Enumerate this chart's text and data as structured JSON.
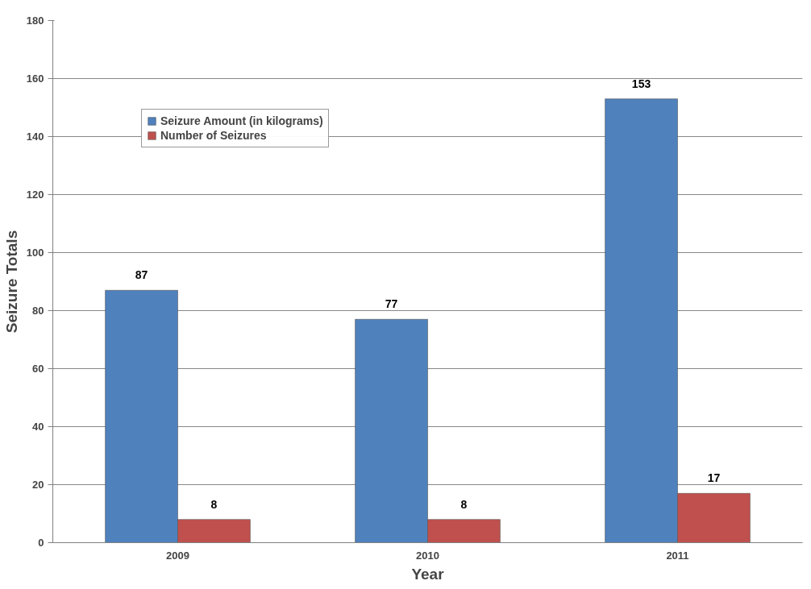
{
  "chart_data": {
    "type": "bar",
    "xlabel": "Year",
    "ylabel": "Seizure Totals",
    "categories": [
      "2009",
      "2010",
      "2011"
    ],
    "series": [
      {
        "name": "Seizure Amount (in kilograms)",
        "color": "#4f81bd",
        "values": [
          87,
          77,
          153
        ]
      },
      {
        "name": "Number of Seizures",
        "color": "#c0504d",
        "values": [
          8,
          8,
          17
        ]
      }
    ],
    "ylim": [
      0,
      180
    ],
    "yticks": [
      0,
      20,
      40,
      60,
      80,
      100,
      120,
      140,
      160,
      180
    ],
    "grid": "y",
    "legend": "top left",
    "data_labels": true
  }
}
